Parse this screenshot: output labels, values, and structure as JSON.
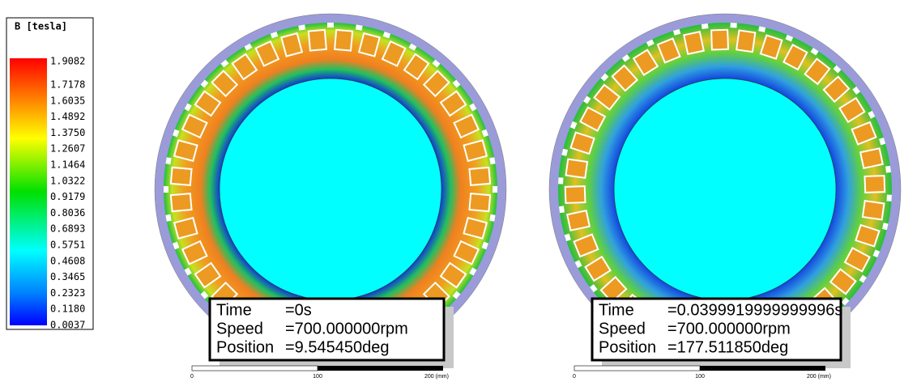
{
  "legend": {
    "title": "B [tesla]",
    "values": [
      "1.9082",
      "1.7178",
      "1.6035",
      "1.4892",
      "1.3750",
      "1.2607",
      "1.1464",
      "1.0322",
      "0.9179",
      "0.8036",
      "0.6893",
      "0.5751",
      "0.4608",
      "0.3465",
      "0.2323",
      "0.1180",
      "0.0037"
    ]
  },
  "panels": [
    {
      "time_label": "Time",
      "time": "=0s",
      "speed_label": "Speed",
      "speed": "=700.000000rpm",
      "position_label": "Position",
      "position": "=9.545450deg",
      "scale_labels": [
        "0",
        "100",
        "200 (mm)"
      ]
    },
    {
      "time_label": "Time",
      "time": "=0.0399919999999996s",
      "speed_label": "Speed",
      "speed": "=700.000000rpm",
      "position_label": "Position",
      "position": "=177.511850deg",
      "scale_labels": [
        "0",
        "100",
        "200 (mm)"
      ]
    }
  ]
}
